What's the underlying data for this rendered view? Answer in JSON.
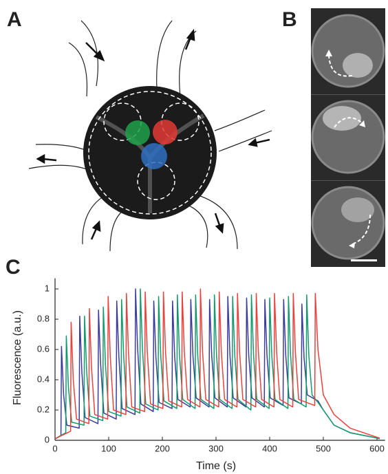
{
  "panels": [
    "A",
    "B",
    "C"
  ],
  "chart_data": {
    "type": "line",
    "x_label": "Time (s)",
    "y_label": "Fluorescence (a.u.)",
    "xlim": [
      0,
      615
    ],
    "ylim": [
      0,
      1.07
    ],
    "xticks": [
      0,
      100,
      200,
      300,
      400,
      500,
      600
    ],
    "yticks": [
      0,
      0.2,
      0.4,
      0.6,
      0.8,
      1
    ],
    "series": [
      {
        "color": "#3a3b9c",
        "x": [
          0,
          11,
          12,
          16,
          22,
          45,
          46,
          50,
          56,
          80,
          81,
          85,
          91,
          114,
          115,
          119,
          125,
          149,
          150,
          154,
          160,
          183,
          184,
          188,
          194,
          218,
          219,
          223,
          229,
          252,
          253,
          257,
          263,
          287,
          288,
          292,
          298,
          321,
          322,
          326,
          332,
          356,
          357,
          361,
          367,
          390,
          391,
          395,
          401,
          425,
          426,
          430,
          436,
          459,
          460,
          464,
          470,
          490,
          500,
          520,
          550,
          600,
          605
        ],
        "values": [
          0.01,
          0.03,
          0.62,
          0.3,
          0.1,
          0.08,
          0.82,
          0.45,
          0.15,
          0.11,
          0.86,
          0.5,
          0.18,
          0.14,
          0.92,
          0.55,
          0.21,
          0.17,
          1.0,
          0.6,
          0.24,
          0.19,
          0.92,
          0.55,
          0.25,
          0.21,
          0.92,
          0.55,
          0.27,
          0.22,
          0.93,
          0.56,
          0.28,
          0.22,
          0.93,
          0.56,
          0.28,
          0.22,
          0.95,
          0.56,
          0.28,
          0.22,
          0.94,
          0.56,
          0.28,
          0.22,
          0.93,
          0.56,
          0.28,
          0.23,
          0.93,
          0.56,
          0.28,
          0.24,
          0.9,
          0.55,
          0.3,
          0.26,
          0.2,
          0.1,
          0.05,
          0.015,
          0.01
        ]
      },
      {
        "color": "#139a6c",
        "x": [
          0,
          20,
          21,
          25,
          31,
          54,
          55,
          59,
          65,
          89,
          90,
          94,
          100,
          123,
          124,
          128,
          134,
          158,
          159,
          163,
          169,
          192,
          193,
          197,
          203,
          227,
          228,
          232,
          238,
          261,
          262,
          266,
          272,
          296,
          297,
          301,
          307,
          330,
          331,
          335,
          341,
          365,
          366,
          370,
          376,
          399,
          400,
          404,
          410,
          434,
          435,
          439,
          445,
          468,
          469,
          473,
          479,
          490,
          500,
          520,
          550,
          600,
          605
        ],
        "values": [
          0.01,
          0.05,
          0.69,
          0.35,
          0.12,
          0.1,
          0.82,
          0.45,
          0.16,
          0.13,
          0.88,
          0.5,
          0.19,
          0.16,
          0.93,
          0.55,
          0.22,
          0.18,
          1.0,
          0.6,
          0.24,
          0.2,
          0.95,
          0.56,
          0.26,
          0.21,
          0.96,
          0.56,
          0.27,
          0.21,
          0.96,
          0.56,
          0.27,
          0.21,
          0.96,
          0.56,
          0.27,
          0.21,
          0.95,
          0.56,
          0.27,
          0.2,
          0.96,
          0.56,
          0.27,
          0.21,
          0.94,
          0.56,
          0.27,
          0.21,
          0.95,
          0.56,
          0.27,
          0.22,
          0.96,
          0.56,
          0.3,
          0.25,
          0.2,
          0.1,
          0.05,
          0.015,
          0.01
        ]
      },
      {
        "color": "#e8423c",
        "x": [
          0,
          29,
          30,
          34,
          40,
          63,
          64,
          68,
          74,
          98,
          99,
          103,
          109,
          132,
          133,
          137,
          143,
          167,
          168,
          172,
          178,
          201,
          202,
          206,
          212,
          236,
          237,
          241,
          247,
          270,
          271,
          275,
          281,
          305,
          306,
          310,
          316,
          339,
          340,
          344,
          350,
          374,
          375,
          379,
          385,
          408,
          409,
          413,
          419,
          443,
          444,
          448,
          454,
          484,
          485,
          490,
          500,
          520,
          550,
          600,
          605
        ],
        "values": [
          0.01,
          0.06,
          0.78,
          0.4,
          0.14,
          0.11,
          0.87,
          0.48,
          0.17,
          0.14,
          0.95,
          0.55,
          0.2,
          0.17,
          0.97,
          0.57,
          0.22,
          0.19,
          0.98,
          0.58,
          0.24,
          0.21,
          0.98,
          0.58,
          0.26,
          0.22,
          0.98,
          0.58,
          0.27,
          0.22,
          1.0,
          0.58,
          0.27,
          0.22,
          0.98,
          0.58,
          0.27,
          0.22,
          0.97,
          0.58,
          0.27,
          0.22,
          0.97,
          0.58,
          0.27,
          0.22,
          0.97,
          0.58,
          0.27,
          0.22,
          0.97,
          0.58,
          0.27,
          0.23,
          0.97,
          0.6,
          0.3,
          0.17,
          0.08,
          0.02,
          0.015
        ]
      }
    ]
  }
}
